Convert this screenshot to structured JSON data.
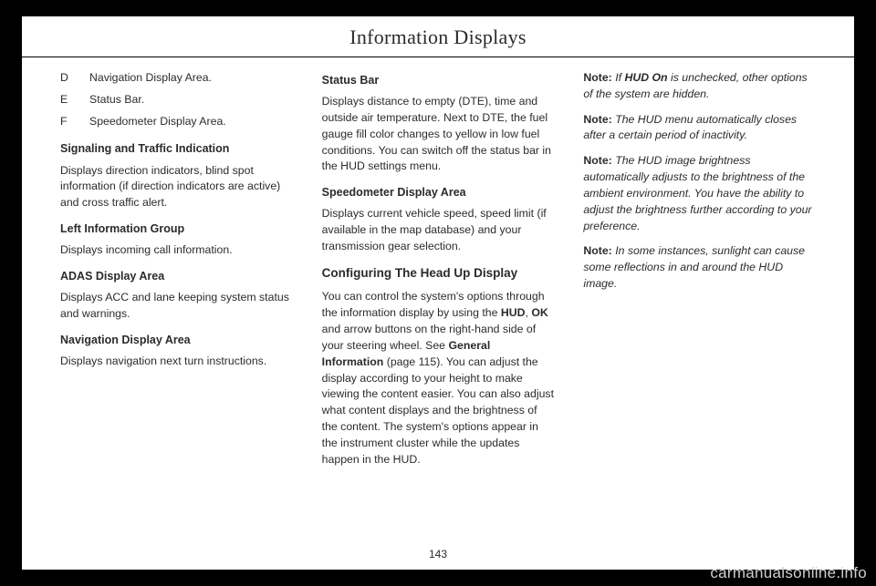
{
  "header": {
    "title": "Information Displays"
  },
  "col1": {
    "defs": [
      {
        "k": "D",
        "v": "Navigation Display Area."
      },
      {
        "k": "E",
        "v": "Status Bar."
      },
      {
        "k": "F",
        "v": "Speedometer Display Area."
      }
    ],
    "h_signal": "Signaling and Traffic Indication",
    "p_signal": "Displays direction indicators, blind spot information (if direction indicators are active) and cross traffic alert.",
    "h_left": "Left Information Group",
    "p_left": "Displays incoming call information.",
    "h_adas": "ADAS Display Area",
    "p_adas": "Displays ACC and lane keeping system status and warnings.",
    "h_nav": "Navigation Display Area",
    "p_nav": "Displays navigation next turn instructions."
  },
  "col2": {
    "h_status": "Status Bar",
    "p_status": "Displays distance to empty (DTE), time and outside air temperature. Next to DTE, the fuel gauge fill color changes to yellow in low fuel conditions. You can switch off the status bar in the HUD settings menu.",
    "h_speed": "Speedometer Display Area",
    "p_speed": "Displays current vehicle speed, speed limit (if available in the map database) and your transmission gear selection.",
    "h_config": "Configuring The Head Up Display",
    "cfg_pre": "You can control the system's options through the information display by using the ",
    "cfg_hud": "HUD",
    "cfg_comma": ", ",
    "cfg_ok": "OK",
    "cfg_mid": " and arrow buttons on the right-hand side of your steering wheel.  See ",
    "cfg_link": "General Information",
    "cfg_page": " (page 115).  You can adjust the display according to your height to make viewing the content easier. You can also adjust what content displays and the brightness of the content. The system's options appear in the instrument cluster while the updates happen in the HUD."
  },
  "col3": {
    "notes": [
      {
        "pre": "If ",
        "bold": "HUD On",
        "post": " is unchecked, other options of the system are hidden."
      },
      {
        "plain": "The HUD menu automatically closes after a certain period of inactivity."
      },
      {
        "plain": "The HUD image brightness automatically adjusts to the brightness of the ambient environment. You have the ability to adjust the brightness further according to your preference."
      },
      {
        "plain": "In some instances, sunlight can cause some reflections in and around the HUD image."
      }
    ],
    "note_label": "Note:"
  },
  "pagenum": "143",
  "watermark": "carmanualsonline.info"
}
